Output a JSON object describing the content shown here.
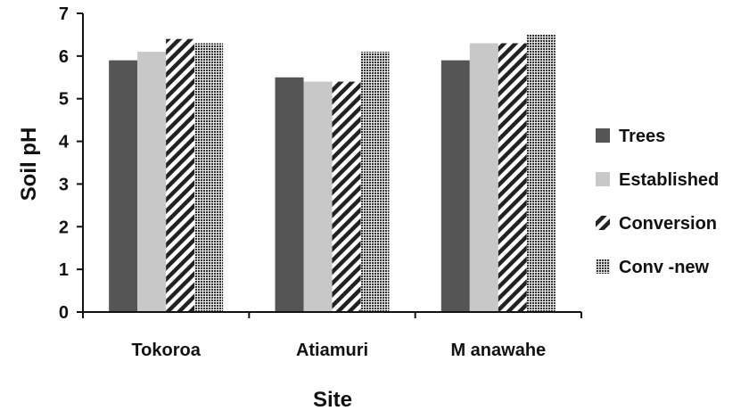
{
  "chart_data": {
    "type": "bar",
    "title": "",
    "xlabel": "Site",
    "ylabel": "Soil pH",
    "ylim": [
      0,
      7
    ],
    "yticks": [
      0,
      1,
      2,
      3,
      4,
      5,
      6,
      7
    ],
    "grid": false,
    "legend_position": "right",
    "categories": [
      "Tokoroa",
      "Atiamuri",
      "M anawahe"
    ],
    "series": [
      {
        "name": "Trees",
        "values": [
          5.9,
          5.5,
          5.9
        ],
        "color": "#555555",
        "pattern": "solid"
      },
      {
        "name": "Established",
        "values": [
          6.1,
          5.4,
          6.3
        ],
        "color": "#c8c8c8",
        "pattern": "solid"
      },
      {
        "name": "Conversion",
        "values": [
          6.4,
          5.4,
          6.3
        ],
        "color": "#222222",
        "pattern": "diagonal-stripes"
      },
      {
        "name": "Conv -new",
        "values": [
          6.3,
          6.1,
          6.5
        ],
        "color": "#333333",
        "pattern": "dots"
      }
    ]
  }
}
